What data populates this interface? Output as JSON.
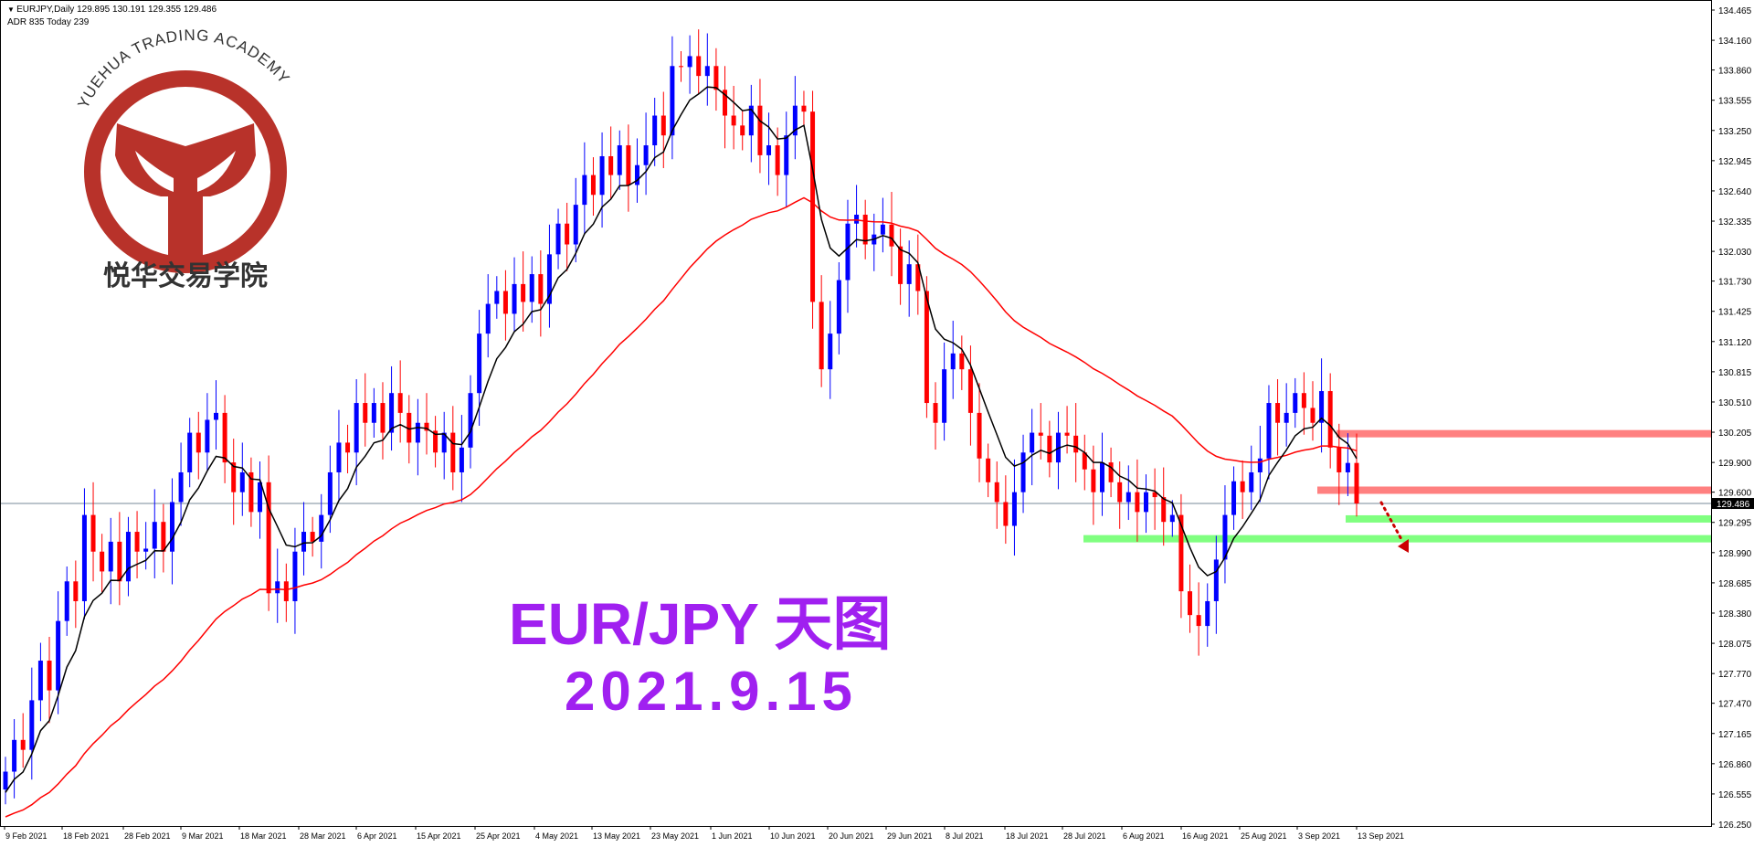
{
  "header": {
    "symbol_line": "EURJPY,Daily  129.895 130.191 129.355 129.486",
    "adr_line": "ADR 835  Today 239"
  },
  "logo": {
    "text_en": "YUEHUA TRADING ACADEMY",
    "text_cn": "悦华交易学院",
    "color": "#b8322a"
  },
  "annotation": {
    "title": "EUR/JPY 天图",
    "date": "2021.9.15",
    "color": "#a020f0"
  },
  "colors": {
    "bull": "#0000ff",
    "bear": "#ff0000",
    "ma_fast": "#000000",
    "ma_slow": "#ff0000",
    "resistance_zone": "#ff8080",
    "support_zone": "#80ff80",
    "arrow": "#cc0000"
  },
  "chart_data": {
    "type": "candlestick",
    "symbol": "EURJPY",
    "timeframe": "Daily",
    "current_price": 129.486,
    "last_bar": {
      "open": 129.895,
      "high": 130.191,
      "low": 129.355,
      "close": 129.486
    },
    "ylim": [
      126.25,
      134.465
    ],
    "y_ticks": [
      "134.465",
      "134.160",
      "133.860",
      "133.555",
      "133.250",
      "132.945",
      "132.640",
      "132.335",
      "132.030",
      "131.730",
      "131.425",
      "131.120",
      "130.815",
      "130.510",
      "130.205",
      "129.900",
      "129.600",
      "129.295",
      "128.990",
      "128.685",
      "128.380",
      "128.075",
      "127.770",
      "127.470",
      "127.165",
      "126.860",
      "126.555",
      "126.250"
    ],
    "x_ticks": [
      "9 Feb 2021",
      "18 Feb 2021",
      "28 Feb 2021",
      "9 Mar 2021",
      "18 Mar 2021",
      "28 Mar 2021",
      "6 Apr 2021",
      "15 Apr 2021",
      "25 Apr 2021",
      "4 May 2021",
      "13 May 2021",
      "23 May 2021",
      "1 Jun 2021",
      "10 Jun 2021",
      "20 Jun 2021",
      "29 Jun 2021",
      "8 Jul 2021",
      "18 Jul 2021",
      "28 Jul 2021",
      "6 Aug 2021",
      "16 Aug 2021",
      "25 Aug 2021",
      "3 Sep 2021",
      "13 Sep 2021"
    ],
    "closes": [
      126.78,
      127.1,
      127.0,
      127.5,
      127.9,
      127.6,
      128.3,
      128.7,
      128.5,
      129.37,
      129.0,
      128.8,
      129.1,
      128.7,
      129.2,
      129.0,
      129.03,
      129.3,
      129.0,
      129.5,
      129.8,
      130.2,
      130.0,
      130.33,
      130.4,
      129.9,
      129.6,
      129.8,
      129.4,
      129.7,
      128.58,
      128.7,
      128.5,
      129.0,
      129.2,
      129.1,
      129.37,
      129.8,
      130.1,
      130.0,
      130.5,
      130.3,
      130.5,
      130.2,
      130.6,
      130.4,
      130.1,
      130.3,
      130.22,
      130.0,
      130.2,
      129.8,
      130.05,
      130.6,
      131.2,
      131.5,
      131.63,
      131.4,
      131.7,
      131.52,
      131.8,
      131.5,
      132.0,
      132.31,
      132.1,
      132.5,
      132.8,
      132.6,
      132.99,
      132.8,
      133.1,
      132.7,
      132.9,
      133.1,
      133.4,
      133.2,
      133.9,
      133.89,
      134.0,
      133.8,
      133.9,
      133.66,
      133.4,
      133.3,
      133.2,
      133.5,
      133.0,
      133.1,
      132.8,
      133.2,
      133.5,
      133.44,
      131.52,
      130.84,
      131.2,
      131.74,
      132.31,
      132.4,
      132.1,
      132.2,
      132.3,
      132.08,
      131.7,
      131.9,
      131.63,
      130.5,
      130.3,
      130.84,
      131.0,
      130.84,
      130.4,
      129.94,
      129.7,
      129.5,
      129.26,
      129.6,
      130.0,
      130.2,
      130.17,
      129.9,
      130.2,
      130.17,
      130.0,
      129.83,
      129.6,
      129.9,
      129.7,
      129.5,
      129.6,
      129.4,
      129.6,
      129.55,
      129.3,
      129.37,
      128.6,
      128.36,
      128.25,
      128.5,
      128.92,
      129.37,
      129.71,
      129.6,
      129.8,
      129.94,
      130.5,
      130.3,
      130.4,
      130.6,
      130.45,
      130.3,
      130.62,
      130.05,
      129.8,
      129.895,
      129.486
    ],
    "zones": [
      {
        "kind": "resistance",
        "price": 130.19
      },
      {
        "kind": "resistance",
        "price": 129.62
      },
      {
        "kind": "support",
        "price": 129.33
      },
      {
        "kind": "support",
        "price": 129.13
      }
    ],
    "grid": false
  }
}
